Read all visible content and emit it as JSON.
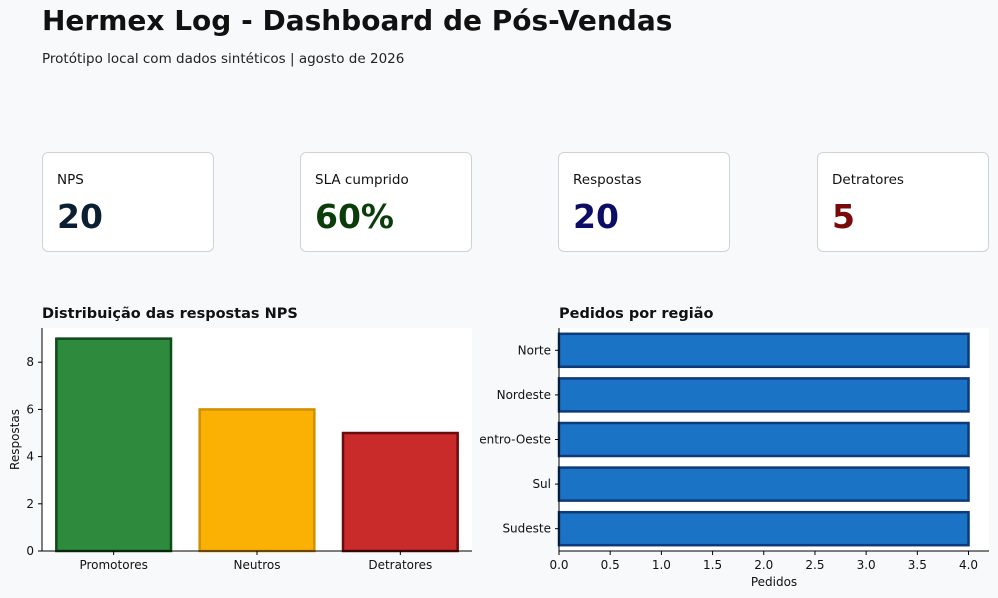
{
  "header": {
    "title": "Hermex Log - Dashboard de Pós-Vendas",
    "subtitle": "Protótipo local com dados sintéticos | agosto de 2026"
  },
  "kpis": [
    {
      "label": "NPS",
      "value": "20",
      "color": "#0b1f33"
    },
    {
      "label": "SLA cumprido",
      "value": "60%",
      "color": "#0b3d0b"
    },
    {
      "label": "Respostas",
      "value": "20",
      "color": "#0d0d66"
    },
    {
      "label": "Detratores",
      "value": "5",
      "color": "#7a0a0a"
    }
  ],
  "chart_data": [
    {
      "type": "bar",
      "title": "Distribuição das respostas NPS",
      "ylabel": "Respostas",
      "xlabel": "",
      "categories": [
        "Promotores",
        "Neutros",
        "Detratores"
      ],
      "values": [
        9,
        6,
        5
      ],
      "colors": [
        "#2e8b3e",
        "#fbb104",
        "#c92a2a"
      ],
      "edge_colors": [
        "#0e4d1a",
        "#d08f00",
        "#6e0b0b"
      ],
      "ylim": [
        0,
        9.45
      ],
      "yticks": [
        0,
        2,
        4,
        6,
        8
      ],
      "grid": false
    },
    {
      "type": "bar",
      "orientation": "horizontal",
      "title": "Pedidos por região",
      "xlabel": "Pedidos",
      "ylabel": "",
      "categories": [
        "Norte",
        "Nordeste",
        "Centro-Oeste",
        "Sul",
        "Sudeste"
      ],
      "values": [
        4,
        4,
        4,
        4,
        4
      ],
      "color": "#1a73c4",
      "edge_color": "#0d3a7a",
      "xlim": [
        0,
        4.2
      ],
      "xticks": [
        0.0,
        0.5,
        1.0,
        1.5,
        2.0,
        2.5,
        3.0,
        3.5,
        4.0
      ],
      "xtick_labels": [
        "0.0",
        "0.5",
        "1.0",
        "1.5",
        "2.0",
        "2.5",
        "3.0",
        "3.5",
        "4.0"
      ],
      "grid": false
    }
  ]
}
